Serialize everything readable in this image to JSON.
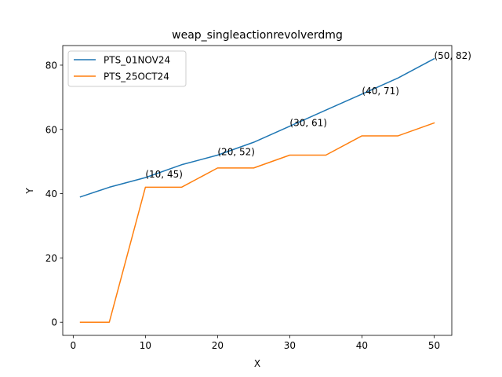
{
  "chart_data": {
    "type": "line",
    "title": "weap_singleactionrevolverdmg",
    "xlabel": "X",
    "ylabel": "Y",
    "xlim": [
      -1.45,
      52.45
    ],
    "ylim": [
      -4.1,
      86.1
    ],
    "xticks": [
      0,
      10,
      20,
      30,
      40,
      50
    ],
    "yticks": [
      0,
      20,
      40,
      60,
      80
    ],
    "grid": false,
    "legend_position": "top-left",
    "series": [
      {
        "name": "PTS_01NOV24",
        "color": "#1f77b4",
        "x": [
          1,
          5,
          10,
          15,
          20,
          25,
          30,
          35,
          40,
          45,
          50
        ],
        "y": [
          39,
          42,
          45,
          49,
          52,
          56,
          61,
          66,
          71,
          76,
          82
        ]
      },
      {
        "name": "PTS_25OCT24",
        "color": "#ff7f0e",
        "x": [
          1,
          5,
          10,
          15,
          20,
          25,
          30,
          35,
          40,
          45,
          50
        ],
        "y": [
          0,
          0,
          42,
          42,
          48,
          48,
          52,
          52,
          58,
          58,
          62
        ]
      }
    ],
    "annotations": [
      {
        "x": 10,
        "y": 45,
        "text": "(10, 45)"
      },
      {
        "x": 20,
        "y": 52,
        "text": "(20, 52)"
      },
      {
        "x": 30,
        "y": 61,
        "text": "(30, 61)"
      },
      {
        "x": 40,
        "y": 71,
        "text": "(40, 71)"
      },
      {
        "x": 50,
        "y": 82,
        "text": "(50, 82)"
      }
    ]
  }
}
